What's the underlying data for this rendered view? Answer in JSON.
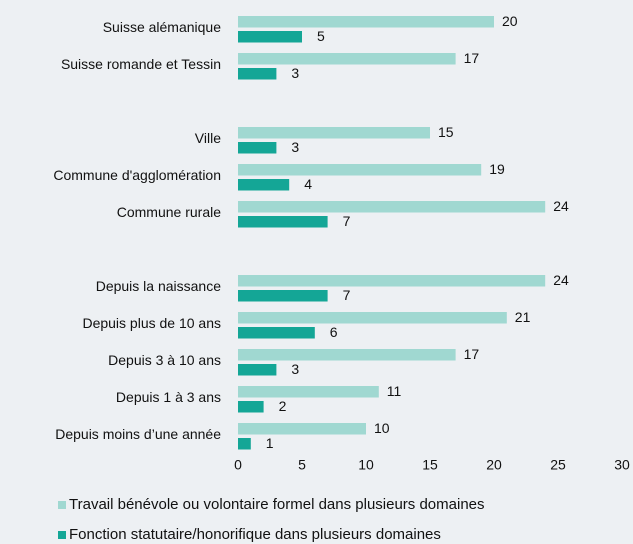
{
  "chart_data": {
    "type": "barh",
    "categories": [
      "Suisse alémanique",
      "Suisse romande et Tessin",
      null,
      "Ville",
      "Commune d'agglomération",
      "Commune rurale",
      null,
      "Depuis la naissance",
      "Depuis plus de 10 ans",
      "Depuis 3 à 10 ans",
      "Depuis 1 à 3 ans",
      "Depuis moins d’une année"
    ],
    "series": [
      {
        "name": "Travail bénévole ou volontaire formel dans plusieurs domaines",
        "color": "#a0d8d1",
        "values": [
          20,
          17,
          null,
          15,
          19,
          24,
          null,
          24,
          21,
          17,
          11,
          10
        ]
      },
      {
        "name": "Fonction statutaire/honorifique dans plusieurs domaines",
        "color": "#14a696",
        "values": [
          5,
          3,
          null,
          3,
          4,
          7,
          null,
          7,
          6,
          3,
          2,
          1
        ]
      }
    ],
    "xlim": [
      0,
      30
    ],
    "xticks": [
      0,
      5,
      10,
      15,
      20,
      25,
      30
    ],
    "grid": false,
    "legend": "bottom"
  }
}
